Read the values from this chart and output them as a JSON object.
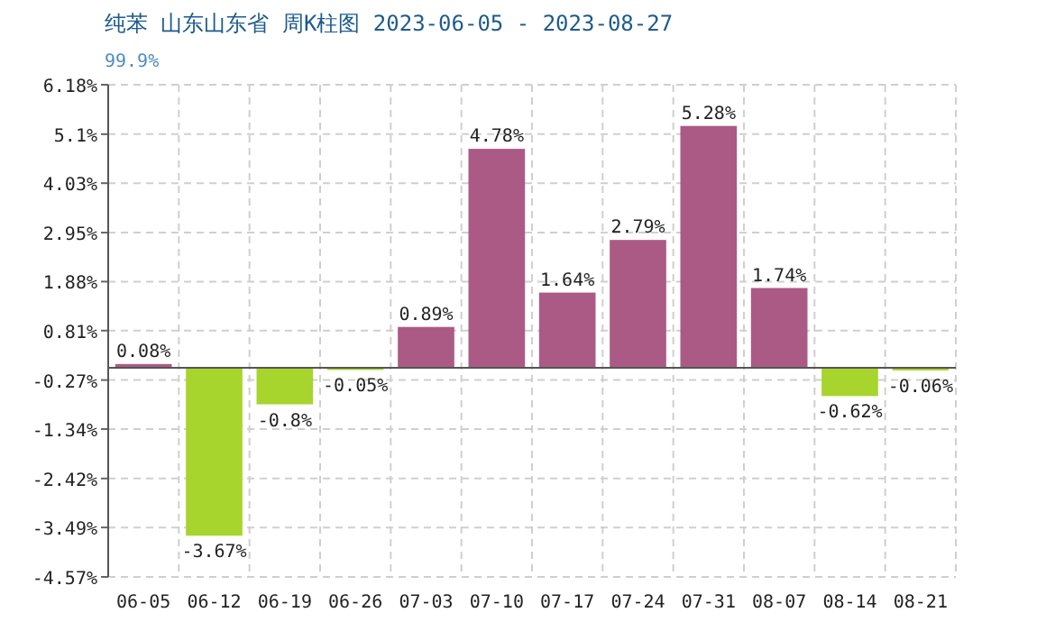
{
  "chart_data": {
    "type": "bar",
    "title": "纯苯 山东山东省 周K柱图 2023-06-05 - 2023-08-27",
    "subtitle": "99.9%",
    "categories": [
      "06-05",
      "06-12",
      "06-19",
      "06-26",
      "07-03",
      "07-10",
      "07-17",
      "07-24",
      "07-31",
      "08-07",
      "08-14",
      "08-21"
    ],
    "values": [
      0.08,
      -3.67,
      -0.8,
      -0.05,
      0.89,
      4.78,
      1.64,
      2.79,
      5.28,
      1.74,
      -0.62,
      -0.06
    ],
    "value_labels": [
      "0.08%",
      "-3.67%",
      "-0.8%",
      "-0.05%",
      "0.89%",
      "4.78%",
      "1.64%",
      "2.79%",
      "5.28%",
      "1.74%",
      "-0.62%",
      "-0.06%"
    ],
    "colors": [
      "#ab5a85",
      "#a8d42e",
      "#a8d42e",
      "#a8d42e",
      "#ab5a85",
      "#ab5a85",
      "#ab5a85",
      "#ab5a85",
      "#ab5a85",
      "#ab5a85",
      "#a8d42e",
      "#a8d42e"
    ],
    "ylim": [
      -4.57,
      6.18
    ],
    "yticks": [
      {
        "value": 6.18,
        "label": "6.18%"
      },
      {
        "value": 5.1,
        "label": "5.1%"
      },
      {
        "value": 4.03,
        "label": "4.03%"
      },
      {
        "value": 2.95,
        "label": "2.95%"
      },
      {
        "value": 1.88,
        "label": "1.88%"
      },
      {
        "value": 0.81,
        "label": "0.81%"
      },
      {
        "value": -0.27,
        "label": "-0.27%"
      },
      {
        "value": -1.34,
        "label": "-1.34%"
      },
      {
        "value": -2.42,
        "label": "-2.42%"
      },
      {
        "value": -3.49,
        "label": "-3.49%"
      },
      {
        "value": -4.57,
        "label": "-4.57%"
      }
    ],
    "grid": true
  }
}
